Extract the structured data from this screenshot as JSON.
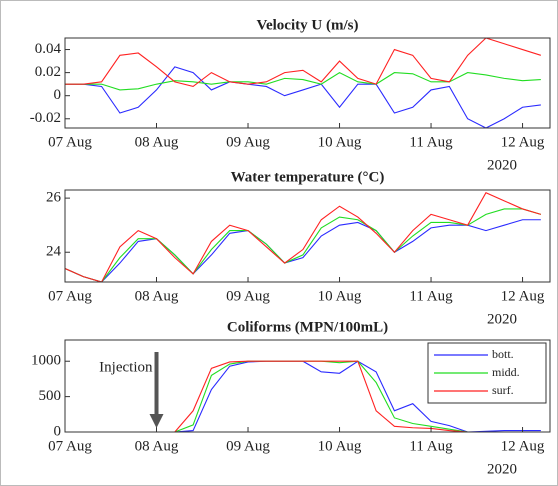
{
  "chart_data": [
    {
      "type": "line",
      "title": "Velocity U (m/s)",
      "x_note": "2020",
      "x": [
        0,
        0.2,
        0.4,
        0.6,
        0.8,
        1.0,
        1.2,
        1.4,
        1.6,
        1.8,
        2.0,
        2.2,
        2.4,
        2.6,
        2.8,
        3.0,
        3.2,
        3.4,
        3.6,
        3.8,
        4.0,
        4.2,
        4.4,
        4.6,
        4.8,
        5.0,
        5.2
      ],
      "xlim": [
        0,
        5.3
      ],
      "xticks": [
        {
          "value": 0,
          "label": "07 Aug"
        },
        {
          "value": 1,
          "label": "08 Aug"
        },
        {
          "value": 2,
          "label": "09 Aug"
        },
        {
          "value": 3,
          "label": "10 Aug"
        },
        {
          "value": 4,
          "label": "11 Aug"
        },
        {
          "value": 5,
          "label": "12 Aug"
        }
      ],
      "ylim": [
        -0.028,
        0.05
      ],
      "yticks": [
        -0.02,
        0,
        0.02,
        0.04
      ],
      "series": [
        {
          "color": "#2b2bff",
          "values": [
            0.01,
            0.01,
            0.008,
            -0.015,
            -0.01,
            0.005,
            0.025,
            0.02,
            0.005,
            0.012,
            0.01,
            0.008,
            0.0,
            0.005,
            0.01,
            -0.01,
            0.01,
            0.01,
            -0.015,
            -0.01,
            0.005,
            0.008,
            -0.02,
            -0.028,
            -0.02,
            -0.01,
            -0.008
          ]
        },
        {
          "color": "#22dd22",
          "values": [
            0.01,
            0.01,
            0.01,
            0.005,
            0.006,
            0.01,
            0.013,
            0.012,
            0.01,
            0.012,
            0.012,
            0.01,
            0.015,
            0.014,
            0.01,
            0.02,
            0.012,
            0.01,
            0.02,
            0.019,
            0.012,
            0.012,
            0.02,
            0.018,
            0.015,
            0.013,
            0.014
          ]
        },
        {
          "color": "#ff2222",
          "values": [
            0.01,
            0.01,
            0.012,
            0.035,
            0.037,
            0.025,
            0.012,
            0.008,
            0.02,
            0.012,
            0.01,
            0.012,
            0.02,
            0.022,
            0.012,
            0.03,
            0.015,
            0.01,
            0.04,
            0.035,
            0.015,
            0.012,
            0.035,
            0.05,
            0.045,
            0.04,
            0.035
          ]
        }
      ]
    },
    {
      "type": "line",
      "title": "Water temperature (°C)",
      "x_note": "2020",
      "x": [
        0,
        0.2,
        0.4,
        0.6,
        0.8,
        1.0,
        1.2,
        1.4,
        1.6,
        1.8,
        2.0,
        2.2,
        2.4,
        2.6,
        2.8,
        3.0,
        3.2,
        3.4,
        3.6,
        3.8,
        4.0,
        4.2,
        4.4,
        4.6,
        4.8,
        5.0,
        5.2
      ],
      "xlim": [
        0,
        5.3
      ],
      "xticks": [
        {
          "value": 0,
          "label": "07 Aug"
        },
        {
          "value": 1,
          "label": "08 Aug"
        },
        {
          "value": 2,
          "label": "09 Aug"
        },
        {
          "value": 3,
          "label": "10 Aug"
        },
        {
          "value": 4,
          "label": "11 Aug"
        },
        {
          "value": 5,
          "label": "12 Aug"
        }
      ],
      "ylim": [
        22.9,
        26.3
      ],
      "yticks": [
        24,
        26
      ],
      "series": [
        {
          "color": "#2b2bff",
          "values": [
            23.4,
            23.1,
            22.9,
            23.6,
            24.4,
            24.5,
            23.9,
            23.2,
            23.9,
            24.7,
            24.8,
            24.3,
            23.6,
            23.8,
            24.6,
            25.0,
            25.1,
            24.8,
            24.0,
            24.4,
            24.9,
            25.0,
            25.0,
            24.8,
            25.0,
            25.2,
            25.2
          ]
        },
        {
          "color": "#22dd22",
          "values": [
            23.4,
            23.1,
            22.9,
            23.8,
            24.5,
            24.5,
            23.9,
            23.2,
            24.1,
            24.8,
            24.8,
            24.3,
            23.6,
            23.9,
            24.9,
            25.3,
            25.2,
            24.8,
            24.0,
            24.6,
            25.1,
            25.1,
            25.0,
            25.4,
            25.6,
            25.6,
            25.4
          ]
        },
        {
          "color": "#ff2222",
          "values": [
            23.4,
            23.1,
            22.9,
            24.2,
            24.8,
            24.5,
            23.8,
            23.2,
            24.4,
            25.0,
            24.8,
            24.2,
            23.6,
            24.1,
            25.2,
            25.7,
            25.3,
            24.7,
            24.0,
            24.8,
            25.4,
            25.2,
            25.0,
            26.2,
            25.9,
            25.6,
            25.4
          ]
        }
      ]
    },
    {
      "type": "line",
      "title": "Coliforms (MPN/100mL)",
      "x_note": "2020",
      "annotation": "Injection",
      "legend": "upper right",
      "x": [
        0,
        0.2,
        0.4,
        0.6,
        0.8,
        1.0,
        1.2,
        1.4,
        1.6,
        1.8,
        2.0,
        2.2,
        2.4,
        2.6,
        2.8,
        3.0,
        3.2,
        3.4,
        3.6,
        3.8,
        4.0,
        4.2,
        4.4,
        4.6,
        4.8,
        5.0,
        5.2
      ],
      "xlim": [
        0,
        5.3
      ],
      "xticks": [
        {
          "value": 0,
          "label": "07 Aug"
        },
        {
          "value": 1,
          "label": "08 Aug"
        },
        {
          "value": 2,
          "label": "09 Aug"
        },
        {
          "value": 3,
          "label": "10 Aug"
        },
        {
          "value": 4,
          "label": "11 Aug"
        },
        {
          "value": 5,
          "label": "12 Aug"
        }
      ],
      "ylim": [
        0,
        1300
      ],
      "yticks": [
        0,
        500,
        1000
      ],
      "series": [
        {
          "name": "bott.",
          "color": "#2b2bff",
          "values": [
            0,
            0,
            0,
            0,
            0,
            0,
            0,
            20,
            600,
            930,
            990,
            1000,
            1000,
            1000,
            850,
            830,
            1000,
            850,
            300,
            400,
            150,
            90,
            0,
            10,
            20,
            20,
            20
          ]
        },
        {
          "name": "midd.",
          "color": "#22dd22",
          "values": [
            0,
            0,
            0,
            0,
            0,
            0,
            0,
            100,
            800,
            960,
            1000,
            1000,
            1000,
            1000,
            1000,
            980,
            1000,
            700,
            200,
            120,
            80,
            40,
            0,
            0,
            0,
            0,
            0
          ]
        },
        {
          "name": "surf.",
          "color": "#ff2222",
          "values": [
            0,
            0,
            0,
            0,
            0,
            0,
            0,
            300,
            900,
            990,
            1000,
            1000,
            1000,
            1000,
            1000,
            1000,
            1000,
            300,
            80,
            60,
            50,
            20,
            0,
            0,
            0,
            0,
            0
          ]
        }
      ]
    }
  ]
}
